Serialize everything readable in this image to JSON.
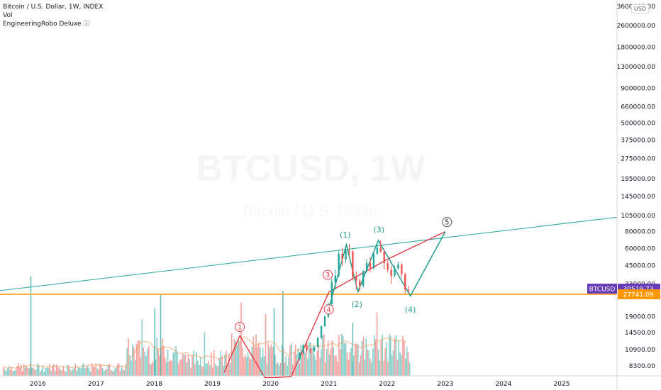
{
  "legend": {
    "symbol_line": "Bitcoin / U.S. Dollar, 1W, INDEX",
    "vol_line": "Vol",
    "indicator_line": "EngineeringRobo Deluxe ⓘ"
  },
  "currency_button": "USD",
  "watermark": {
    "symbol": "BTCUSD, 1W",
    "description": "Bitcoin / U.S. Dollar"
  },
  "colors": {
    "up": "#26a69a",
    "down": "#ef5350",
    "trendline": "#26a69a",
    "support": "#ff9800",
    "wave_green": "#1e9c8a",
    "wave_red": "#e53945",
    "symbol_tag": "#673ab7"
  },
  "chart_data": {
    "type": "candlestick",
    "scale": "log",
    "price_ticks": [
      "3600000.00",
      "2600000.00",
      "1800000.00",
      "1300000.00",
      "900000.00",
      "660000.00",
      "500000.00",
      "375000.00",
      "275000.00",
      "195000.00",
      "145000.00",
      "105000.00",
      "80000.00",
      "60000.00",
      "45000.00",
      "33000.00",
      "19000.00",
      "14500.00",
      "10900.00",
      "8300.00"
    ],
    "price_tick_values": [
      3600000,
      2600000,
      1800000,
      1300000,
      900000,
      660000,
      500000,
      375000,
      275000,
      195000,
      145000,
      105000,
      80000,
      60000,
      45000,
      33000,
      19000,
      14500,
      10900,
      8300
    ],
    "time_labels": [
      "2016",
      "2017",
      "2018",
      "2019",
      "2020",
      "2021",
      "2022",
      "2023",
      "2024",
      "2025"
    ],
    "time_label_years": [
      2016,
      2017,
      2018,
      2019,
      2020,
      2021,
      2022,
      2023,
      2024,
      2025
    ],
    "y_range": [
      7000,
      4000000
    ],
    "x_range": [
      2015.35,
      2025.95
    ],
    "candles": [
      [
        2020.5,
        9300,
        10500,
        9000,
        10300
      ],
      [
        2020.56,
        10300,
        12000,
        10000,
        11700
      ],
      [
        2020.62,
        11700,
        12300,
        10500,
        10800
      ],
      [
        2020.68,
        10800,
        11200,
        10200,
        10700
      ],
      [
        2020.75,
        10700,
        11500,
        10500,
        11400
      ],
      [
        2020.81,
        11400,
        13500,
        11300,
        13300
      ],
      [
        2020.87,
        13300,
        16500,
        13000,
        16200
      ],
      [
        2020.93,
        16200,
        19500,
        16000,
        19000
      ],
      [
        2020.99,
        19000,
        24000,
        18500,
        23500
      ],
      [
        2021.05,
        23500,
        36000,
        23000,
        34000
      ],
      [
        2021.11,
        34000,
        42000,
        30000,
        38000
      ],
      [
        2021.17,
        38000,
        58000,
        37000,
        55000
      ],
      [
        2021.23,
        55000,
        61000,
        45000,
        50000
      ],
      [
        2021.29,
        50000,
        60000,
        47000,
        58000
      ],
      [
        2021.35,
        58000,
        64800,
        53000,
        57000
      ],
      [
        2021.41,
        57000,
        59000,
        35000,
        37000
      ],
      [
        2021.47,
        37000,
        41000,
        30000,
        35000
      ],
      [
        2021.53,
        35000,
        36000,
        29000,
        32000
      ],
      [
        2021.59,
        32000,
        42000,
        31000,
        41000
      ],
      [
        2021.65,
        41000,
        50000,
        40000,
        47000
      ],
      [
        2021.71,
        47000,
        52000,
        40000,
        43000
      ],
      [
        2021.77,
        43000,
        56000,
        42000,
        55000
      ],
      [
        2021.83,
        55000,
        66000,
        54000,
        61000
      ],
      [
        2021.89,
        61000,
        69000,
        56000,
        57000
      ],
      [
        2021.95,
        57000,
        59000,
        42000,
        47000
      ],
      [
        2022.01,
        47000,
        49000,
        40000,
        42000
      ],
      [
        2022.07,
        42000,
        45000,
        33000,
        38000
      ],
      [
        2022.13,
        38000,
        45000,
        37000,
        43000
      ],
      [
        2022.19,
        43000,
        48000,
        42000,
        46000
      ],
      [
        2022.25,
        46000,
        47000,
        37000,
        39000
      ],
      [
        2022.31,
        39000,
        40000,
        28000,
        30000
      ],
      [
        2022.37,
        30000,
        32000,
        28500,
        29800
      ]
    ],
    "volume": {
      "avg_line": true
    },
    "trendline": {
      "from": [
        2015.35,
        29500
      ],
      "to": [
        2025.95,
        102000
      ]
    },
    "support_level": 27741.09,
    "last_price": 30519.73,
    "symbol_tag": "BTCUSD",
    "last_price_label": "30519.73",
    "support_label": "27741.09",
    "red_path": [
      [
        2019.2,
        7400
      ],
      [
        2019.47,
        13800
      ],
      [
        2019.9,
        6800
      ],
      [
        2020.05,
        6800
      ],
      [
        2020.35,
        6900
      ],
      [
        2021.0,
        28800
      ],
      [
        2022.0,
        50000
      ],
      [
        2023.0,
        80000
      ]
    ],
    "green_path": [
      [
        2021.0,
        22000
      ],
      [
        2021.3,
        64000
      ],
      [
        2021.5,
        29000
      ],
      [
        2021.85,
        69000
      ],
      [
        2022.4,
        27000
      ],
      [
        2023.0,
        80000
      ]
    ],
    "green_labels": [
      {
        "text": "(1)",
        "x": 2021.28,
        "y": 76000
      },
      {
        "text": "(2)",
        "x": 2021.48,
        "y": 23500
      },
      {
        "text": "(3)",
        "x": 2021.86,
        "y": 83000
      },
      {
        "text": "(4)",
        "x": 2022.4,
        "y": 21500
      }
    ],
    "circle_labels": [
      {
        "text": "5",
        "x": 2023.03,
        "y": 94000,
        "color": "green"
      },
      {
        "text": "3",
        "x": 2020.98,
        "y": 38500,
        "color": "red"
      },
      {
        "text": "4",
        "x": 2021.0,
        "y": 21500,
        "color": "red"
      },
      {
        "text": "1",
        "x": 2019.47,
        "y": 16000,
        "color": "red"
      }
    ]
  }
}
